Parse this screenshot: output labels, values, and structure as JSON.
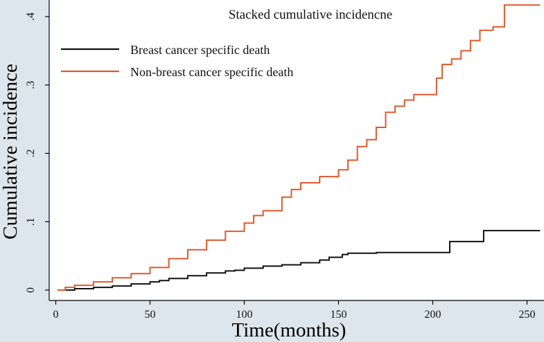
{
  "chart_data": {
    "type": "line",
    "title": "Stacked cumulative incidencne",
    "xlabel": "Time(months)",
    "ylabel": "Cumulative  incidence",
    "xlim": [
      0,
      260
    ],
    "ylim": [
      -0.007,
      0.42
    ],
    "xticks": [
      0,
      50,
      100,
      150,
      200,
      250
    ],
    "xtick_labels": [
      "0",
      "50",
      "100",
      "150",
      "200",
      "250"
    ],
    "yticks": [
      0,
      0.1,
      0.2,
      0.3,
      0.4
    ],
    "ytick_labels": [
      "0",
      ".1",
      ".2",
      ".3",
      ".4"
    ],
    "grid": false,
    "legend_position": "top-left",
    "series": [
      {
        "name": "Breast cancer specific death",
        "color": "#111111",
        "step": true,
        "points": [
          [
            1,
            0
          ],
          [
            10,
            0.002
          ],
          [
            20,
            0.004
          ],
          [
            30,
            0.006
          ],
          [
            40,
            0.009
          ],
          [
            50,
            0.012
          ],
          [
            55,
            0.014
          ],
          [
            60,
            0.017
          ],
          [
            70,
            0.021
          ],
          [
            80,
            0.025
          ],
          [
            90,
            0.028
          ],
          [
            95,
            0.029
          ],
          [
            100,
            0.032
          ],
          [
            110,
            0.035
          ],
          [
            120,
            0.037
          ],
          [
            130,
            0.04
          ],
          [
            140,
            0.044
          ],
          [
            145,
            0.048
          ],
          [
            152,
            0.052
          ],
          [
            155,
            0.054
          ],
          [
            170,
            0.055
          ],
          [
            200,
            0.055
          ],
          [
            208,
            0.055
          ],
          [
            209,
            0.071
          ],
          [
            226,
            0.071
          ],
          [
            227,
            0.087
          ],
          [
            257,
            0.087
          ]
        ]
      },
      {
        "name": "Non-breast cancer specific death",
        "color": "#e0582a",
        "step": true,
        "points": [
          [
            1,
            0
          ],
          [
            5,
            0.004
          ],
          [
            10,
            0.007
          ],
          [
            20,
            0.012
          ],
          [
            30,
            0.018
          ],
          [
            40,
            0.024
          ],
          [
            50,
            0.033
          ],
          [
            60,
            0.046
          ],
          [
            70,
            0.059
          ],
          [
            80,
            0.073
          ],
          [
            90,
            0.086
          ],
          [
            100,
            0.098
          ],
          [
            105,
            0.109
          ],
          [
            110,
            0.116
          ],
          [
            120,
            0.136
          ],
          [
            125,
            0.147
          ],
          [
            130,
            0.157
          ],
          [
            140,
            0.166
          ],
          [
            150,
            0.176
          ],
          [
            155,
            0.19
          ],
          [
            160,
            0.21
          ],
          [
            165,
            0.22
          ],
          [
            170,
            0.238
          ],
          [
            175,
            0.26
          ],
          [
            180,
            0.269
          ],
          [
            185,
            0.278
          ],
          [
            190,
            0.286
          ],
          [
            200,
            0.286
          ],
          [
            202,
            0.31
          ],
          [
            205,
            0.33
          ],
          [
            210,
            0.338
          ],
          [
            215,
            0.35
          ],
          [
            220,
            0.365
          ],
          [
            225,
            0.38
          ],
          [
            232,
            0.385
          ],
          [
            237,
            0.385
          ],
          [
            238,
            0.417
          ],
          [
            257,
            0.417
          ]
        ]
      }
    ]
  }
}
